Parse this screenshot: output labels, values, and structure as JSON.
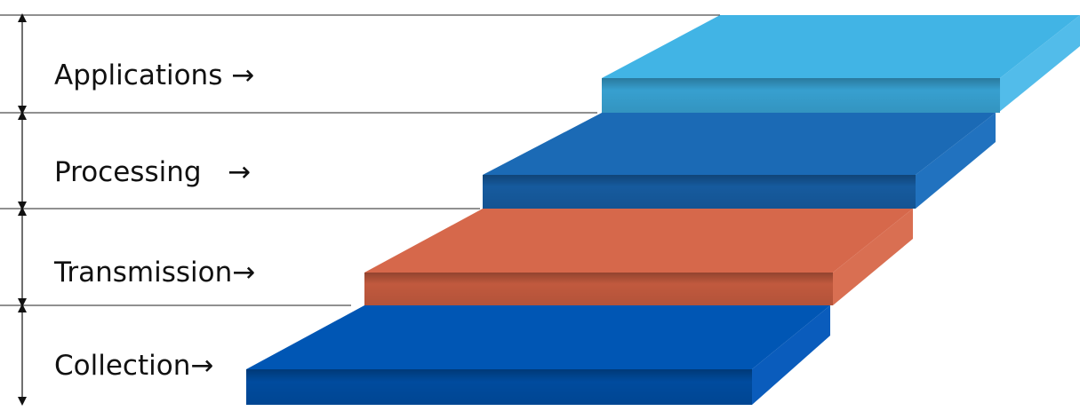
{
  "layers": [
    {
      "label": "Applications →",
      "color": "#41B4E5",
      "front_color": "#3AA8DA",
      "side_color": "#52BCEA"
    },
    {
      "label": "Processing   →",
      "color": "#1B6AB5",
      "front_color": "#175FA6",
      "side_color": "#2172BF"
    },
    {
      "label": "Transmission→",
      "color": "#D6684B",
      "front_color": "#CB5E41",
      "side_color": "#D96F52"
    },
    {
      "label": "Collection→",
      "color": "#0056B4",
      "front_color": "#004FA6",
      "side_color": "#0A5CBC"
    }
  ]
}
